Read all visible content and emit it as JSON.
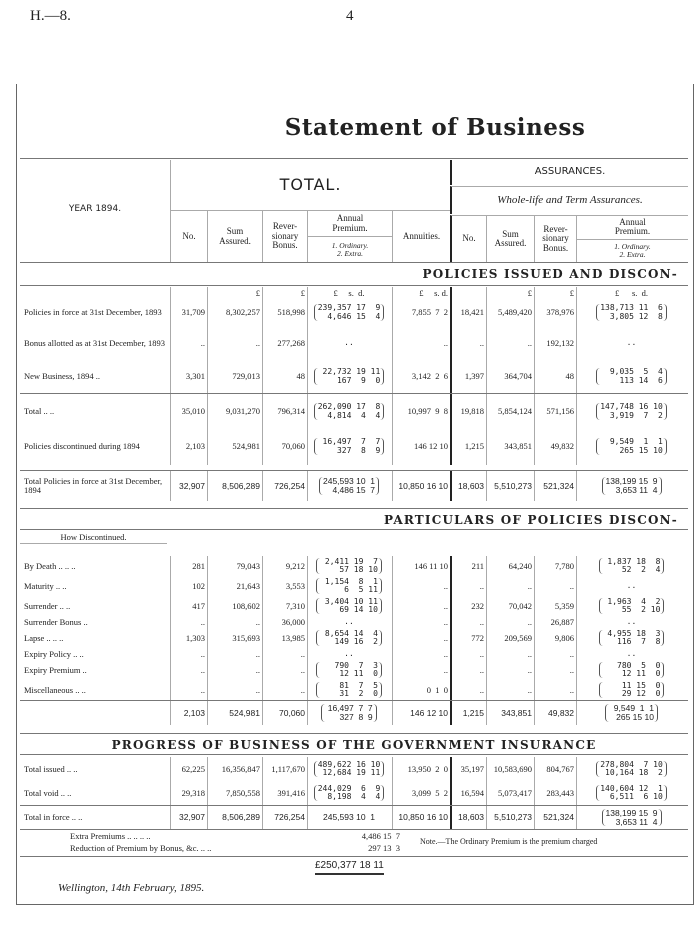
{
  "page": {
    "ref": "H.—8.",
    "number": "4",
    "title": "Statement of Business"
  },
  "header": {
    "year": "YEAR 1894.",
    "total": "TOTAL.",
    "assurances": "ASSURANCES.",
    "whole_life": "Whole-life and Term Assurances.",
    "cols": {
      "no": "No.",
      "sum": "Sum\nAssured.",
      "rev": "Rever-\nsionary\nBonus.",
      "annual": "Annual\nPremium.",
      "annual_sub": "1. Ordinary.\n2. Extra.",
      "annuities": "Annuities."
    }
  },
  "section1": {
    "heading": "POLICIES ISSUED AND DISCON-",
    "units": [
      "",
      "",
      "£",
      "£",
      "£     s.  d.",
      "£     s. d.",
      "",
      "£",
      "£",
      "£      s.  d."
    ],
    "rows": [
      [
        "Policies in force at 31st December, 1893",
        "31,709",
        "8,302,257",
        "518,998",
        "239,357 17  9\n  4,646 15  4",
        "7,855  7  2",
        "18,421",
        "5,489,420",
        "378,976",
        "138,713 11  6\n  3,805 12  8"
      ],
      [
        "Bonus allotted as at 31st December, 1893",
        "..",
        "..",
        "277,268",
        "..",
        "..",
        "..",
        "..",
        "192,132",
        ".."
      ],
      [
        "New Business, 1894 ..",
        "3,301",
        "729,013",
        "48",
        " 22,732 19 11\n    167  9  0",
        "3,142  2  6",
        "1,397",
        "364,704",
        "48",
        "  9,035  5  4\n    113 14  6"
      ],
      [
        "Total .. ..",
        "35,010",
        "9,031,270",
        "796,314",
        "262,090 17  8\n  4,814  4  4",
        "10,997  9  8",
        "19,818",
        "5,854,124",
        "571,156",
        "147,748 16 10\n  3,919  7  2"
      ],
      [
        "Policies discontinued during 1894",
        "2,103",
        "524,981",
        "70,060",
        " 16,497  7  7\n    327  8  9",
        "146 12 10",
        "1,215",
        "343,851",
        "49,832",
        "  9,549  1  1\n    265 15 10"
      ],
      [
        "Total Policies in force at 31st December, 1894",
        "32,907",
        "8,506,289",
        "726,254",
        "245,593 10  1\n  4,486 15  7",
        "10,850 16 10",
        "18,603",
        "5,510,273",
        "521,324",
        "138,199 15  9\n  3,653 11  4"
      ]
    ]
  },
  "section2": {
    "heading": "PARTICULARS OF POLICIES DISCON-",
    "sub_label": "How Discontinued.",
    "rows": [
      [
        "By Death .. .. ..",
        "281",
        "79,043",
        "9,212",
        " 2,411 19  7\n    57 18 10",
        "146 11 10",
        "211",
        "64,240",
        "7,780",
        " 1,837 18  8\n    52  2  4"
      ],
      [
        "Maturity .. ..",
        "102",
        "21,643",
        "3,553",
        " 1,154  8  1\n     6  5 11",
        "..",
        "..",
        "..",
        "..",
        ".."
      ],
      [
        "Surrender .. ..",
        "417",
        "108,602",
        "7,310",
        " 3,404 10 11\n    69 14 10",
        "..",
        "232",
        "70,042",
        "5,359",
        " 1,963  4  2\n    55  2 10"
      ],
      [
        "Surrender Bonus ..",
        "..",
        "..",
        "36,000",
        "..",
        "..",
        "..",
        "..",
        "26,887",
        ".."
      ],
      [
        "Lapse .. .. ..",
        "1,303",
        "315,693",
        "13,985",
        " 8,654 14  4\n   149 16  2",
        "..",
        "772",
        "209,569",
        "9,806",
        " 4,955 18  3\n   116  7  8"
      ],
      [
        "Expiry Policy .. ..",
        "..",
        "..",
        "..",
        "..",
        "..",
        "..",
        "..",
        "..",
        ".."
      ],
      [
        "Expiry Premium ..",
        "..",
        "..",
        "..",
        "   790  7  3\n    12 11  0",
        "..",
        "..",
        "..",
        "..",
        "   780  5  0\n    12 11  0"
      ],
      [
        "Miscellaneous .. ..",
        "..",
        "..",
        "..",
        "    81  7  5\n    31  2  0",
        "0  1  0",
        "..",
        "..",
        "..",
        "    11 15  0\n    29 12  0"
      ],
      [
        "",
        "2,103",
        "524,981",
        "70,060",
        " 16,497  7  7\n   327  8  9",
        "146 12 10",
        "1,215",
        "343,851",
        "49,832",
        "  9,549  1  1\n   265 15 10"
      ]
    ]
  },
  "section3": {
    "heading": "PROGRESS OF BUSINESS OF THE GOVERNMENT INSURANCE",
    "rows": [
      [
        "Total issued .. ..",
        "62,225",
        "16,356,847",
        "1,117,670",
        "489,622 16 10\n 12,684 19 11",
        "13,950  2  0",
        "35,197",
        "10,583,690",
        "804,767",
        "278,804  7 10\n 10,164 18  2"
      ],
      [
        "Total void .. ..",
        "29,318",
        "7,850,558",
        "391,416",
        "244,029  6  9\n  8,198  4  4",
        "3,099  5  2",
        "16,594",
        "5,073,417",
        "283,443",
        "140,604 12  1\n  6,511  6 10"
      ],
      [
        "Total in force .. ..",
        "32,907",
        "8,506,289",
        "726,254",
        "245,593 10  1",
        "10,850 16 10",
        "18,603",
        "5,510,273",
        "521,324",
        "138,199 15  9\n  3,653 11  4"
      ]
    ],
    "extra_premiums": {
      "label": "Extra Premiums .. .. .. ..",
      "value": "4,486 15  7"
    },
    "reduction": {
      "label": "Reduction of Premium by Bonus, &c. .. ..",
      "value": "297 13  3"
    },
    "grand_total": "£250,377 18 11",
    "note": "Note.—The Ordinary Premium is the premium charged"
  },
  "footer": {
    "place_date": "Wellington, 14th February, 1895."
  }
}
